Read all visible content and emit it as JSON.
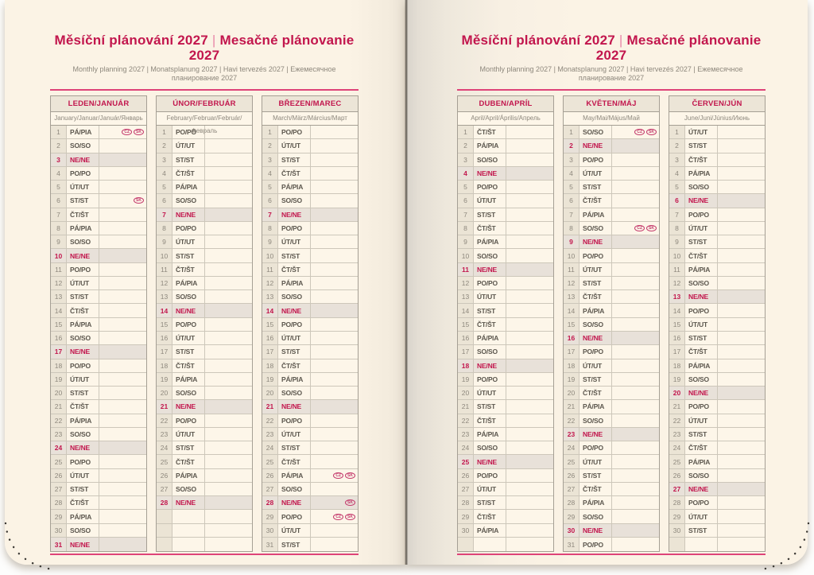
{
  "colors": {
    "accent_magenta": "#c2164d",
    "rule_pink": "#de4378",
    "paper": "#fbf3e5",
    "sunday_row_bg": "#e8e1d9",
    "number_col_bg": "#ebe4d5"
  },
  "pages": [
    {
      "title_cz": "Měsíční plánování 2027",
      "title_separator": "|",
      "title_sk": "Mesačné plánovanie 2027",
      "subtitle": "Monthly planning 2027 | Monatsplanung 2027 | Havi tervezés 2027 | Ежемесячное планирование 2027",
      "months": [
        {
          "header": "LEDEN/JANUÁR",
          "subheader": "January/Januar/Január/Январь",
          "rows": [
            [
              1,
              "PÁ/PIA",
              [
                "CZ",
                "SK"
              ]
            ],
            [
              2,
              "SO/SO"
            ],
            [
              3,
              "NE/NE"
            ],
            [
              4,
              "PO/PO"
            ],
            [
              5,
              "ÚT/UT"
            ],
            [
              6,
              "ST/ST",
              [
                "SK"
              ]
            ],
            [
              7,
              "ČT/ŠT"
            ],
            [
              8,
              "PÁ/PIA"
            ],
            [
              9,
              "SO/SO"
            ],
            [
              10,
              "NE/NE"
            ],
            [
              11,
              "PO/PO"
            ],
            [
              12,
              "ÚT/UT"
            ],
            [
              13,
              "ST/ST"
            ],
            [
              14,
              "ČT/ŠT"
            ],
            [
              15,
              "PÁ/PIA"
            ],
            [
              16,
              "SO/SO"
            ],
            [
              17,
              "NE/NE"
            ],
            [
              18,
              "PO/PO"
            ],
            [
              19,
              "ÚT/UT"
            ],
            [
              20,
              "ST/ST"
            ],
            [
              21,
              "ČT/ŠT"
            ],
            [
              22,
              "PÁ/PIA"
            ],
            [
              23,
              "SO/SO"
            ],
            [
              24,
              "NE/NE"
            ],
            [
              25,
              "PO/PO"
            ],
            [
              26,
              "ÚT/UT"
            ],
            [
              27,
              "ST/ST"
            ],
            [
              28,
              "ČT/ŠT"
            ],
            [
              29,
              "PÁ/PIA"
            ],
            [
              30,
              "SO/SO"
            ],
            [
              31,
              "NE/NE"
            ]
          ]
        },
        {
          "header": "ÚNOR/FEBRUÁR",
          "subheader": "February/Februar/Február/Февраль",
          "rows": [
            [
              1,
              "PO/PO"
            ],
            [
              2,
              "ÚT/UT"
            ],
            [
              3,
              "ST/ST"
            ],
            [
              4,
              "ČT/ŠT"
            ],
            [
              5,
              "PÁ/PIA"
            ],
            [
              6,
              "SO/SO"
            ],
            [
              7,
              "NE/NE"
            ],
            [
              8,
              "PO/PO"
            ],
            [
              9,
              "ÚT/UT"
            ],
            [
              10,
              "ST/ST"
            ],
            [
              11,
              "ČT/ŠT"
            ],
            [
              12,
              "PÁ/PIA"
            ],
            [
              13,
              "SO/SO"
            ],
            [
              14,
              "NE/NE"
            ],
            [
              15,
              "PO/PO"
            ],
            [
              16,
              "ÚT/UT"
            ],
            [
              17,
              "ST/ST"
            ],
            [
              18,
              "ČT/ŠT"
            ],
            [
              19,
              "PÁ/PIA"
            ],
            [
              20,
              "SO/SO"
            ],
            [
              21,
              "NE/NE"
            ],
            [
              22,
              "PO/PO"
            ],
            [
              23,
              "ÚT/UT"
            ],
            [
              24,
              "ST/ST"
            ],
            [
              25,
              "ČT/ŠT"
            ],
            [
              26,
              "PÁ/PIA"
            ],
            [
              27,
              "SO/SO"
            ],
            [
              28,
              "NE/NE"
            ],
            [],
            [],
            []
          ]
        },
        {
          "header": "BŘEZEN/MAREC",
          "subheader": "March/März/Március/Март",
          "rows": [
            [
              1,
              "PO/PO"
            ],
            [
              2,
              "ÚT/UT"
            ],
            [
              3,
              "ST/ST"
            ],
            [
              4,
              "ČT/ŠT"
            ],
            [
              5,
              "PÁ/PIA"
            ],
            [
              6,
              "SO/SO"
            ],
            [
              7,
              "NE/NE"
            ],
            [
              8,
              "PO/PO"
            ],
            [
              9,
              "ÚT/UT"
            ],
            [
              10,
              "ST/ST"
            ],
            [
              11,
              "ČT/ŠT"
            ],
            [
              12,
              "PÁ/PIA"
            ],
            [
              13,
              "SO/SO"
            ],
            [
              14,
              "NE/NE"
            ],
            [
              15,
              "PO/PO"
            ],
            [
              16,
              "ÚT/UT"
            ],
            [
              17,
              "ST/ST"
            ],
            [
              18,
              "ČT/ŠT"
            ],
            [
              19,
              "PÁ/PIA"
            ],
            [
              20,
              "SO/SO"
            ],
            [
              21,
              "NE/NE"
            ],
            [
              22,
              "PO/PO"
            ],
            [
              23,
              "ÚT/UT"
            ],
            [
              24,
              "ST/ST"
            ],
            [
              25,
              "ČT/ŠT"
            ],
            [
              26,
              "PÁ/PIA",
              [
                "CZ",
                "SK"
              ]
            ],
            [
              27,
              "SO/SO"
            ],
            [
              28,
              "NE/NE",
              [
                "SK"
              ]
            ],
            [
              29,
              "PO/PO",
              [
                "CZ",
                "SK"
              ]
            ],
            [
              30,
              "ÚT/UT"
            ],
            [
              31,
              "ST/ST"
            ]
          ]
        }
      ]
    },
    {
      "title_cz": "Měsíční plánování 2027",
      "title_separator": "|",
      "title_sk": "Mesačné plánovanie 2027",
      "subtitle": "Monthly planning 2027 | Monatsplanung 2027 | Havi tervezés 2027 | Ежемесячное планирование 2027",
      "months": [
        {
          "header": "DUBEN/APRÍL",
          "subheader": "April/April/Április/Апрель",
          "rows": [
            [
              1,
              "ČT/ŠT"
            ],
            [
              2,
              "PÁ/PIA"
            ],
            [
              3,
              "SO/SO"
            ],
            [
              4,
              "NE/NE"
            ],
            [
              5,
              "PO/PO"
            ],
            [
              6,
              "ÚT/UT"
            ],
            [
              7,
              "ST/ST"
            ],
            [
              8,
              "ČT/ŠT"
            ],
            [
              9,
              "PÁ/PIA"
            ],
            [
              10,
              "SO/SO"
            ],
            [
              11,
              "NE/NE"
            ],
            [
              12,
              "PO/PO"
            ],
            [
              13,
              "ÚT/UT"
            ],
            [
              14,
              "ST/ST"
            ],
            [
              15,
              "ČT/ŠT"
            ],
            [
              16,
              "PÁ/PIA"
            ],
            [
              17,
              "SO/SO"
            ],
            [
              18,
              "NE/NE"
            ],
            [
              19,
              "PO/PO"
            ],
            [
              20,
              "ÚT/UT"
            ],
            [
              21,
              "ST/ST"
            ],
            [
              22,
              "ČT/ŠT"
            ],
            [
              23,
              "PÁ/PIA"
            ],
            [
              24,
              "SO/SO"
            ],
            [
              25,
              "NE/NE"
            ],
            [
              26,
              "PO/PO"
            ],
            [
              27,
              "ÚT/UT"
            ],
            [
              28,
              "ST/ST"
            ],
            [
              29,
              "ČT/ŠT"
            ],
            [
              30,
              "PÁ/PIA"
            ],
            []
          ]
        },
        {
          "header": "KVĚTEN/MÁJ",
          "subheader": "May/Mai/Május/Май",
          "rows": [
            [
              1,
              "SO/SO",
              [
                "CZ",
                "SK"
              ]
            ],
            [
              2,
              "NE/NE"
            ],
            [
              3,
              "PO/PO"
            ],
            [
              4,
              "ÚT/UT"
            ],
            [
              5,
              "ST/ST"
            ],
            [
              6,
              "ČT/ŠT"
            ],
            [
              7,
              "PÁ/PIA"
            ],
            [
              8,
              "SO/SO",
              [
                "CZ",
                "SK"
              ]
            ],
            [
              9,
              "NE/NE"
            ],
            [
              10,
              "PO/PO"
            ],
            [
              11,
              "ÚT/UT"
            ],
            [
              12,
              "ST/ST"
            ],
            [
              13,
              "ČT/ŠT"
            ],
            [
              14,
              "PÁ/PIA"
            ],
            [
              15,
              "SO/SO"
            ],
            [
              16,
              "NE/NE"
            ],
            [
              17,
              "PO/PO"
            ],
            [
              18,
              "ÚT/UT"
            ],
            [
              19,
              "ST/ST"
            ],
            [
              20,
              "ČT/ŠT"
            ],
            [
              21,
              "PÁ/PIA"
            ],
            [
              22,
              "SO/SO"
            ],
            [
              23,
              "NE/NE"
            ],
            [
              24,
              "PO/PO"
            ],
            [
              25,
              "ÚT/UT"
            ],
            [
              26,
              "ST/ST"
            ],
            [
              27,
              "ČT/ŠT"
            ],
            [
              28,
              "PÁ/PIA"
            ],
            [
              29,
              "SO/SO"
            ],
            [
              30,
              "NE/NE"
            ],
            [
              31,
              "PO/PO"
            ]
          ]
        },
        {
          "header": "ČERVEN/JÚN",
          "subheader": "June/Juni/Június/Июнь",
          "rows": [
            [
              1,
              "ÚT/UT"
            ],
            [
              2,
              "ST/ST"
            ],
            [
              3,
              "ČT/ŠT"
            ],
            [
              4,
              "PÁ/PIA"
            ],
            [
              5,
              "SO/SO"
            ],
            [
              6,
              "NE/NE"
            ],
            [
              7,
              "PO/PO"
            ],
            [
              8,
              "ÚT/UT"
            ],
            [
              9,
              "ST/ST"
            ],
            [
              10,
              "ČT/ŠT"
            ],
            [
              11,
              "PÁ/PIA"
            ],
            [
              12,
              "SO/SO"
            ],
            [
              13,
              "NE/NE"
            ],
            [
              14,
              "PO/PO"
            ],
            [
              15,
              "ÚT/UT"
            ],
            [
              16,
              "ST/ST"
            ],
            [
              17,
              "ČT/ŠT"
            ],
            [
              18,
              "PÁ/PIA"
            ],
            [
              19,
              "SO/SO"
            ],
            [
              20,
              "NE/NE"
            ],
            [
              21,
              "PO/PO"
            ],
            [
              22,
              "ÚT/UT"
            ],
            [
              23,
              "ST/ST"
            ],
            [
              24,
              "ČT/ŠT"
            ],
            [
              25,
              "PÁ/PIA"
            ],
            [
              26,
              "SO/SO"
            ],
            [
              27,
              "NE/NE"
            ],
            [
              28,
              "PO/PO"
            ],
            [
              29,
              "ÚT/UT"
            ],
            [
              30,
              "ST/ST"
            ],
            []
          ]
        }
      ]
    }
  ]
}
